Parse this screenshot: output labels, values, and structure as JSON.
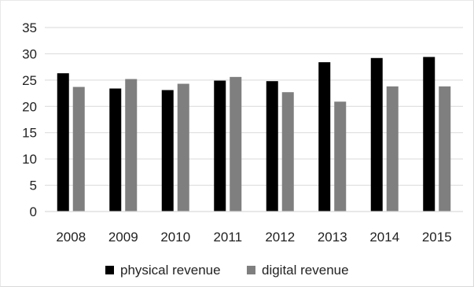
{
  "chart_data": {
    "type": "bar",
    "categories": [
      "2008",
      "2009",
      "2010",
      "2011",
      "2012",
      "2013",
      "2014",
      "2015"
    ],
    "series": [
      {
        "name": "physical revenue",
        "values": [
          26.3,
          23.4,
          23.1,
          24.9,
          24.8,
          28.4,
          29.2,
          29.4
        ],
        "color": "#000000"
      },
      {
        "name": "digital revenue",
        "values": [
          23.7,
          25.2,
          24.3,
          25.6,
          22.7,
          20.9,
          23.8,
          23.8
        ],
        "color": "#7f7f7f"
      }
    ],
    "ylim": [
      0,
      35
    ],
    "yticks": [
      0,
      5,
      10,
      15,
      20,
      25,
      30,
      35
    ],
    "grid": true,
    "legend_position": "bottom",
    "title": "",
    "xlabel": "",
    "ylabel": ""
  }
}
